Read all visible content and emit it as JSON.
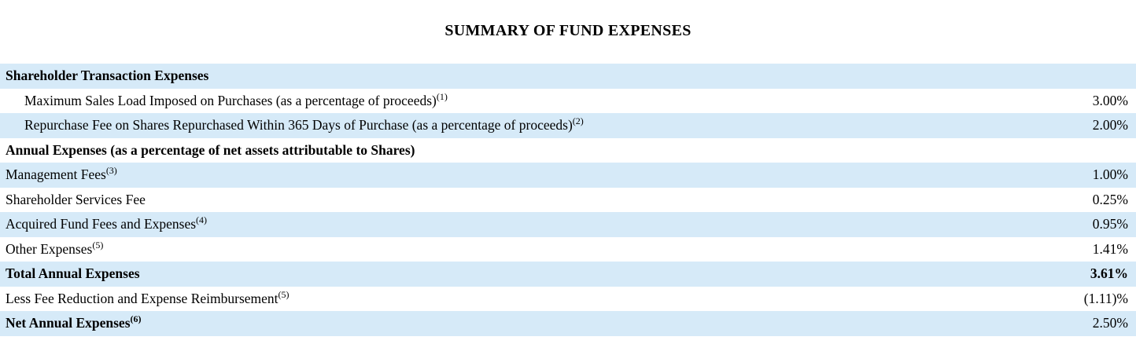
{
  "page": {
    "title": "SUMMARY OF FUND EXPENSES"
  },
  "table": {
    "colors": {
      "row_highlight": "#d6eaf8"
    },
    "rows": [
      {
        "label": "Shareholder Transaction Expenses",
        "sup": "",
        "value": ""
      },
      {
        "label": "Maximum Sales Load Imposed on Purchases (as a percentage of proceeds)",
        "sup": "(1)",
        "value": "3.00%"
      },
      {
        "label": "Repurchase Fee on Shares Repurchased Within 365 Days of Purchase (as a percentage of proceeds)",
        "sup": "(2)",
        "value": "2.00%"
      },
      {
        "label": "Annual Expenses (as a percentage of net assets attributable to Shares)",
        "sup": "",
        "value": ""
      },
      {
        "label": "Management Fees",
        "sup": "(3)",
        "value": "1.00%"
      },
      {
        "label": "Shareholder Services Fee",
        "sup": "",
        "value": "0.25%"
      },
      {
        "label": "Acquired Fund Fees and Expenses",
        "sup": "(4)",
        "value": "0.95%"
      },
      {
        "label": "Other Expenses",
        "sup": "(5)",
        "value": "1.41%"
      },
      {
        "label": "Total Annual Expenses",
        "sup": "",
        "value": "3.61%"
      },
      {
        "label": "Less Fee Reduction and Expense Reimbursement",
        "sup": "(5)",
        "value": "(1.11)%"
      },
      {
        "label": "Net Annual Expenses",
        "sup": "(6)",
        "value": "2.50%"
      }
    ]
  }
}
